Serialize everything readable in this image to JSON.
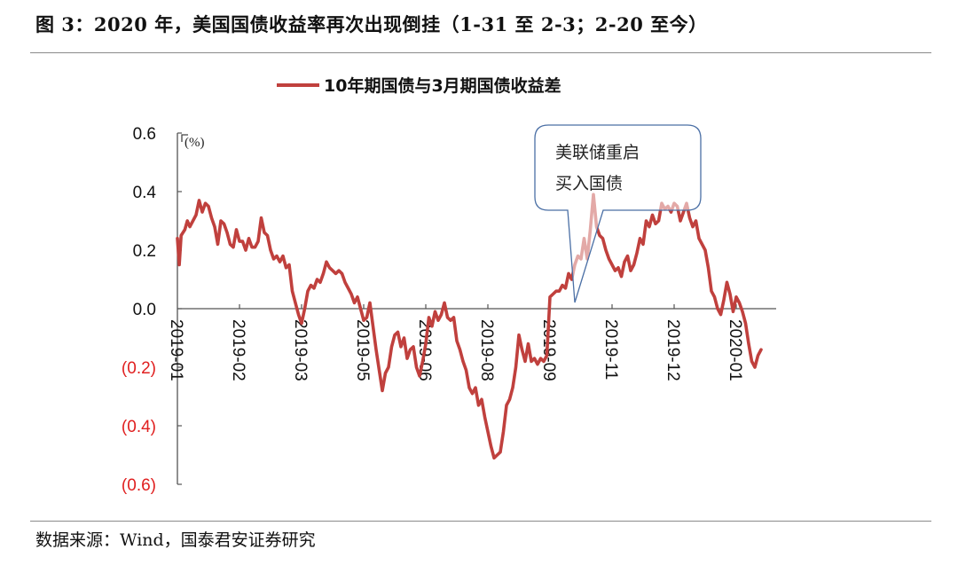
{
  "figure": {
    "title": "图 3：2020 年，美国国债收益率再次出现倒挂（1-31 至 2-3；2-20 至今）",
    "source": "数据来源：Wind，国泰君安证券研究"
  },
  "colors": {
    "line": "#c0403d",
    "negative_tick": "#e02020",
    "positive_tick": "#111111",
    "axis": "#555555",
    "callout_border": "#4a6fa5"
  },
  "chart_data": {
    "type": "line",
    "title": "",
    "legend": {
      "position": "top",
      "entries": [
        "10年期国债与3月期国债收益差"
      ]
    },
    "xlabel": "",
    "ylabel": "(%)",
    "ylim": [
      -0.6,
      0.6
    ],
    "grid": false,
    "y_ticks": [
      {
        "value": 0.6,
        "label": "0.6"
      },
      {
        "value": 0.4,
        "label": "0.4"
      },
      {
        "value": 0.2,
        "label": "0.2"
      },
      {
        "value": 0.0,
        "label": "0.0"
      },
      {
        "value": -0.2,
        "label": "(0.2)"
      },
      {
        "value": -0.4,
        "label": "(0.4)"
      },
      {
        "value": -0.6,
        "label": "(0.6)"
      }
    ],
    "x_ticks": [
      "2019-01",
      "2019-02",
      "2019-03",
      "2019-05",
      "2019-06",
      "2019-08",
      "2019-09",
      "2019-11",
      "2019-12",
      "2020-01"
    ],
    "annotations": [
      {
        "text_lines": [
          "美联储重启",
          "买入国债"
        ],
        "points_to_x_index": 6.5,
        "points_to_value": 0.02
      }
    ],
    "series": [
      {
        "name": "10年期国债与3月期国债收益差",
        "x_pos": [
          0,
          0.03,
          0.06,
          0.09,
          0.12,
          0.16,
          0.2,
          0.25,
          0.3,
          0.35,
          0.4,
          0.45,
          0.5,
          0.55,
          0.6,
          0.65,
          0.7,
          0.75,
          0.8,
          0.85,
          0.9,
          0.95,
          1.0,
          1.05,
          1.1,
          1.15,
          1.2,
          1.25,
          1.3,
          1.35,
          1.4,
          1.45,
          1.5,
          1.55,
          1.6,
          1.65,
          1.7,
          1.75,
          1.8,
          1.85,
          1.9,
          1.95,
          2.0,
          2.05,
          2.1,
          2.15,
          2.2,
          2.25,
          2.3,
          2.35,
          2.4,
          2.45,
          2.5,
          2.55,
          2.6,
          2.65,
          2.7,
          2.75,
          2.8,
          2.85,
          2.9,
          2.95,
          3.0,
          3.05,
          3.1,
          3.15,
          3.2,
          3.25,
          3.3,
          3.35,
          3.4,
          3.45,
          3.5,
          3.55,
          3.6,
          3.65,
          3.7,
          3.75,
          3.8,
          3.85,
          3.9,
          3.95,
          4.0,
          4.05,
          4.1,
          4.15,
          4.2,
          4.25,
          4.3,
          4.35,
          4.4,
          4.45,
          4.5,
          4.55,
          4.6,
          4.65,
          4.7,
          4.75,
          4.8,
          4.85,
          4.9,
          4.95,
          5.0,
          5.05,
          5.1,
          5.15,
          5.2,
          5.25,
          5.3,
          5.35,
          5.4,
          5.45,
          5.5,
          5.55,
          5.6,
          5.65,
          5.7,
          5.75,
          5.8,
          5.85,
          5.9,
          5.95,
          6.0,
          6.05,
          6.1,
          6.15,
          6.2,
          6.25,
          6.3,
          6.35,
          6.4,
          6.45,
          6.5,
          6.55,
          6.6,
          6.65,
          6.7,
          6.75,
          6.8,
          6.85,
          6.9,
          6.95,
          7.0,
          7.05,
          7.1,
          7.15,
          7.2,
          7.25,
          7.3,
          7.35,
          7.4,
          7.45,
          7.5,
          7.55,
          7.6,
          7.65,
          7.7,
          7.75,
          7.8,
          7.85,
          7.9,
          7.95,
          8.0,
          8.05,
          8.1,
          8.15,
          8.2,
          8.25,
          8.3,
          8.35,
          8.4,
          8.45,
          8.5,
          8.55,
          8.6,
          8.65,
          8.7,
          8.75,
          8.8,
          8.85,
          8.9,
          8.95,
          9.0,
          9.05,
          9.1,
          9.15,
          9.2,
          9.25,
          9.3,
          9.35,
          9.4,
          9.45,
          9.5,
          9.55,
          9.6,
          9.65
        ],
        "values": [
          0.24,
          0.15,
          0.25,
          0.26,
          0.27,
          0.3,
          0.28,
          0.3,
          0.32,
          0.37,
          0.33,
          0.36,
          0.35,
          0.31,
          0.28,
          0.22,
          0.3,
          0.29,
          0.26,
          0.22,
          0.21,
          0.27,
          0.23,
          0.23,
          0.2,
          0.24,
          0.21,
          0.21,
          0.23,
          0.31,
          0.26,
          0.25,
          0.2,
          0.17,
          0.18,
          0.16,
          0.18,
          0.14,
          0.15,
          0.06,
          0.02,
          -0.02,
          -0.05,
          0.0,
          0.06,
          0.08,
          0.07,
          0.1,
          0.09,
          0.12,
          0.16,
          0.14,
          0.13,
          0.12,
          0.13,
          0.12,
          0.09,
          0.07,
          0.05,
          0.02,
          0.04,
          0.0,
          -0.04,
          -0.03,
          0.02,
          -0.06,
          -0.14,
          -0.21,
          -0.28,
          -0.22,
          -0.2,
          -0.13,
          -0.09,
          -0.08,
          -0.13,
          -0.1,
          -0.17,
          -0.14,
          -0.13,
          -0.2,
          -0.23,
          -0.18,
          -0.12,
          -0.03,
          -0.06,
          -0.01,
          -0.04,
          -0.02,
          0.02,
          -0.03,
          -0.04,
          -0.03,
          -0.11,
          -0.14,
          -0.18,
          -0.21,
          -0.27,
          -0.29,
          -0.27,
          -0.33,
          -0.31,
          -0.37,
          -0.42,
          -0.47,
          -0.51,
          -0.5,
          -0.49,
          -0.42,
          -0.33,
          -0.31,
          -0.27,
          -0.2,
          -0.09,
          -0.14,
          -0.18,
          -0.12,
          -0.18,
          -0.17,
          -0.19,
          -0.17,
          -0.18,
          -0.16,
          0.04,
          0.05,
          0.06,
          0.06,
          0.08,
          0.07,
          0.12,
          0.1,
          0.15,
          0.18,
          0.17,
          0.24,
          0.17,
          0.27,
          0.39,
          0.28,
          0.25,
          0.24,
          0.2,
          0.17,
          0.15,
          0.13,
          0.14,
          0.11,
          0.16,
          0.18,
          0.13,
          0.15,
          0.19,
          0.24,
          0.22,
          0.3,
          0.28,
          0.32,
          0.29,
          0.3,
          0.36,
          0.34,
          0.35,
          0.33,
          0.36,
          0.35,
          0.3,
          0.33,
          0.36,
          0.31,
          0.28,
          0.3,
          0.24,
          0.22,
          0.2,
          0.14,
          0.06,
          0.04,
          0.0,
          -0.02,
          0.03,
          0.09,
          0.05,
          -0.01,
          0.04,
          0.02,
          -0.01,
          -0.05,
          -0.12,
          -0.18,
          -0.2,
          -0.16,
          -0.14
        ]
      }
    ]
  }
}
